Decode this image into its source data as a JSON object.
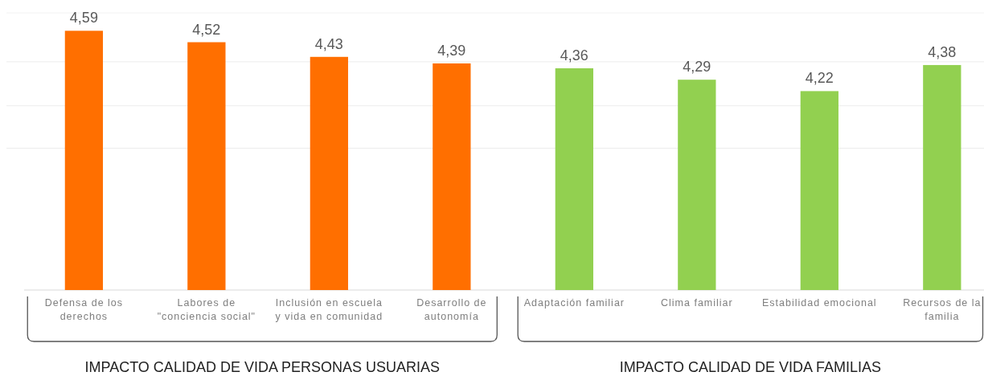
{
  "chart_data": {
    "type": "bar",
    "categories": [
      "Defensa de los\nderechos",
      "Labores de\n\"conciencia social\"",
      "Inclusión en escuela\ny vida en comunidad",
      "Desarrollo de\nautonomía",
      "Adaptación familiar",
      "Clima familiar",
      "Estabilidad emocional",
      "Recursos de la\nfamilia"
    ],
    "series": [
      {
        "color": "#ff6f00",
        "values": [
          4.59,
          4.52,
          4.43,
          4.39,
          null,
          null,
          null,
          null
        ],
        "value_labels": [
          "4,59",
          "4,52",
          "4,43",
          "4,39",
          null,
          null,
          null,
          null
        ]
      },
      {
        "color": "#92d050",
        "values": [
          null,
          null,
          null,
          null,
          4.36,
          4.29,
          4.22,
          4.38
        ],
        "value_labels": [
          null,
          null,
          null,
          null,
          "4,36",
          "4,29",
          "4,22",
          "4,38"
        ]
      }
    ],
    "annotations": [
      "IMPACTO CALIDAD DE VIDA PERSONAS USUARIAS",
      "IMPACTO CALIDAD DE VIDA FAMILIAS"
    ],
    "stacked": true,
    "ylim": [
      3,
      4.7
    ],
    "yticks": [
      {
        "value": 3.87,
        "label": null
      },
      {
        "value": 4.13,
        "label": null
      },
      {
        "value": 4.4,
        "label": null
      }
    ],
    "grid": "y",
    "tick_labels": "x"
  }
}
